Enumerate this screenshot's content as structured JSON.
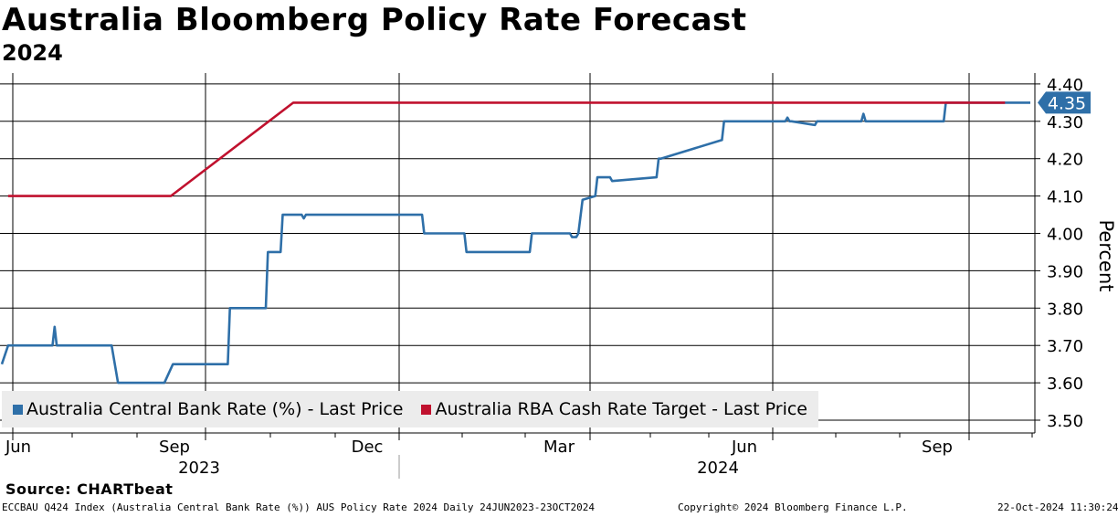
{
  "chart_data": {
    "type": "line",
    "title": "Australia Bloomberg Policy Rate Forecast",
    "subtitle": "2024",
    "ylabel": "Percent",
    "ylim": [
      3.48,
      4.42
    ],
    "y_ticks": [
      "3.50",
      "3.60",
      "3.70",
      "3.80",
      "3.90",
      "4.00",
      "4.10",
      "4.20",
      "4.30",
      "4.40"
    ],
    "x_ticks": [
      "Jun",
      "Sep",
      "Dec",
      "Mar",
      "Jun",
      "Sep"
    ],
    "x_years": [
      "2023",
      "2024"
    ],
    "series": [
      {
        "name": "Australia Central Bank Rate (%) - Last Price",
        "color": "#2e6fa8",
        "x": [
          "2023-06-24",
          "2023-06-27",
          "2023-07-18",
          "2023-07-19",
          "2023-07-20",
          "2023-08-15",
          "2023-08-18",
          "2023-08-19",
          "2023-09-09",
          "2023-09-13",
          "2023-10-09",
          "2023-10-10",
          "2023-10-27",
          "2023-10-28",
          "2023-11-03",
          "2023-11-04",
          "2023-11-13",
          "2023-11-14",
          "2023-11-15",
          "2024-01-09",
          "2024-01-10",
          "2024-01-11",
          "2024-01-29",
          "2024-01-30",
          "2024-02-29",
          "2024-03-01",
          "2024-03-02",
          "2024-03-19",
          "2024-03-20",
          "2024-03-22",
          "2024-03-23",
          "2024-03-25",
          "2024-03-31",
          "2024-04-01",
          "2024-04-07",
          "2024-04-08",
          "2024-04-29",
          "2024-04-30",
          "2024-05-01",
          "2024-05-30",
          "2024-05-31",
          "2024-06-29",
          "2024-06-30",
          "2024-07-01",
          "2024-07-02",
          "2024-07-13",
          "2024-07-14",
          "2024-07-15",
          "2024-08-04",
          "2024-08-05",
          "2024-08-06",
          "2024-09-11",
          "2024-09-12",
          "2024-09-13",
          "2024-09-24",
          "2024-09-26",
          "2024-10-23"
        ],
        "values": [
          3.65,
          3.7,
          3.7,
          3.75,
          3.7,
          3.7,
          3.6,
          3.6,
          3.6,
          3.65,
          3.65,
          3.8,
          3.8,
          3.95,
          3.95,
          4.05,
          4.05,
          4.04,
          4.05,
          4.05,
          4.0,
          4.0,
          4.0,
          3.95,
          3.95,
          4.0,
          4.0,
          4.0,
          3.99,
          3.99,
          4.0,
          4.09,
          4.1,
          4.15,
          4.15,
          4.14,
          4.15,
          4.2,
          4.2,
          4.25,
          4.3,
          4.3,
          4.31,
          4.3,
          4.3,
          4.29,
          4.3,
          4.3,
          4.3,
          4.32,
          4.3,
          4.3,
          4.3,
          4.35,
          4.35,
          4.35,
          4.35
        ]
      },
      {
        "name": "Australia RBA Cash Rate Target - Last Price",
        "color": "#c0112e",
        "x": [
          "2023-06-27",
          "2023-09-12",
          "2023-11-09",
          "2024-10-11"
        ],
        "values": [
          4.1,
          4.1,
          4.35,
          4.35
        ]
      }
    ],
    "last_value_label": "4.35"
  },
  "source": "Source: CHARTbeat",
  "footer": {
    "left": "ECCBAU Q424 Index (Australia Central Bank Rate (%)) AUS Policy Rate 2024  Daily 24JUN2023-23OCT2024",
    "center": "Copyright© 2024 Bloomberg Finance L.P.",
    "right": "22-Oct-2024 11:30:24"
  }
}
